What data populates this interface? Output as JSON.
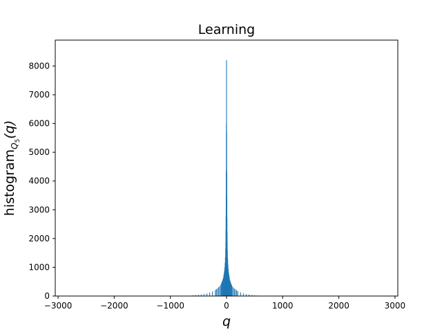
{
  "chart_data": {
    "type": "bar",
    "title": "Learning",
    "xlabel": "q",
    "ylabel": {
      "main": "histogram",
      "sub": "Q",
      "subsub": "5",
      "arg": "(q)"
    },
    "xlim": [
      -3050,
      3050
    ],
    "ylim": [
      0,
      8900
    ],
    "grid": false,
    "legend": "none",
    "bar_color": "#1f77b4",
    "x_ticks": [
      {
        "value": -3000,
        "label": "−3000"
      },
      {
        "value": -2000,
        "label": "−2000"
      },
      {
        "value": -1000,
        "label": "−1000"
      },
      {
        "value": 0,
        "label": "0"
      },
      {
        "value": 1000,
        "label": "1000"
      },
      {
        "value": 2000,
        "label": "2000"
      },
      {
        "value": 3000,
        "label": "3000"
      }
    ],
    "y_ticks": [
      {
        "value": 0,
        "label": "0"
      },
      {
        "value": 1000,
        "label": "1000"
      },
      {
        "value": 2000,
        "label": "2000"
      },
      {
        "value": 3000,
        "label": "3000"
      },
      {
        "value": 4000,
        "label": "4000"
      },
      {
        "value": 5000,
        "label": "5000"
      },
      {
        "value": 6000,
        "label": "6000"
      },
      {
        "value": 7000,
        "label": "7000"
      },
      {
        "value": 8000,
        "label": "8000"
      }
    ],
    "series": [
      {
        "x": [
          -650,
          -600,
          -550,
          -500,
          -450,
          -400,
          -350,
          -300,
          -250,
          -200,
          -180,
          -160,
          -140,
          -120,
          -100,
          -90,
          -80,
          -70,
          -60,
          -50,
          -45,
          -40,
          -35,
          -30,
          -25,
          -20,
          -15,
          -12,
          -10,
          -8,
          -6,
          -4,
          -2,
          0,
          2,
          4,
          6,
          8,
          10,
          12,
          15,
          20,
          25,
          30,
          35,
          40,
          45,
          50,
          60,
          70,
          80,
          90,
          100,
          120,
          140,
          160,
          180,
          200,
          250,
          300,
          350,
          400,
          450,
          500,
          550,
          600,
          650,
          1300
        ],
        "values": [
          15,
          25,
          35,
          45,
          55,
          70,
          90,
          120,
          160,
          210,
          240,
          270,
          310,
          350,
          400,
          450,
          500,
          560,
          620,
          700,
          760,
          820,
          900,
          1000,
          1150,
          1350,
          1650,
          1900,
          2300,
          2800,
          3500,
          4400,
          6000,
          8200,
          5700,
          4300,
          3400,
          2700,
          2200,
          1850,
          1600,
          1300,
          1100,
          950,
          850,
          780,
          720,
          650,
          560,
          500,
          440,
          390,
          340,
          300,
          260,
          230,
          200,
          170,
          130,
          95,
          70,
          50,
          35,
          25,
          18,
          12,
          8,
          10
        ]
      }
    ]
  }
}
